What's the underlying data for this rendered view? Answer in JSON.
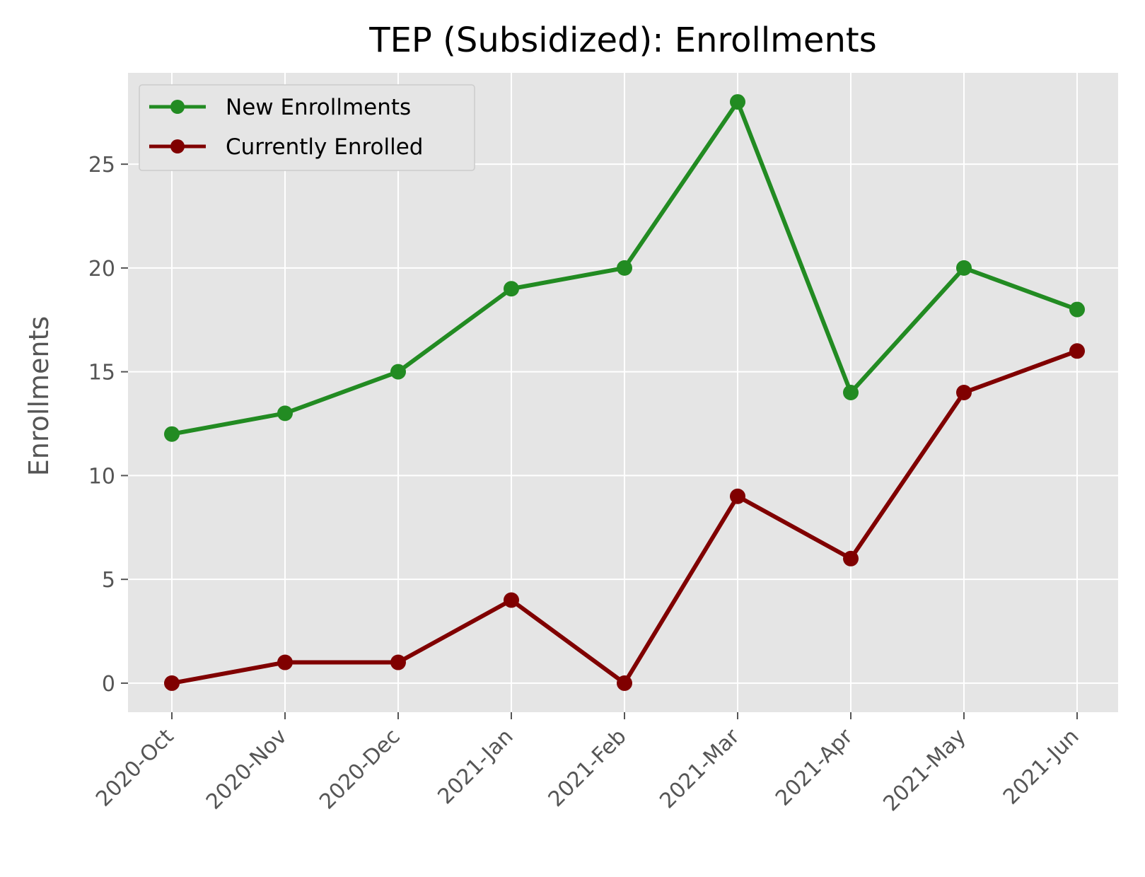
{
  "chart_data": {
    "type": "line",
    "title": "TEP (Subsidized): Enrollments",
    "xlabel": "",
    "ylabel": "Enrollments",
    "categories": [
      "2020-Oct",
      "2020-Nov",
      "2020-Dec",
      "2021-Jan",
      "2021-Feb",
      "2021-Mar",
      "2021-Apr",
      "2021-May",
      "2021-Jun"
    ],
    "y_ticks": [
      0,
      5,
      10,
      15,
      20,
      25
    ],
    "ylim": [
      -1.4,
      29.4
    ],
    "grid": true,
    "legend_position": "top-left",
    "series": [
      {
        "name": "New Enrollments",
        "color": "#228b22",
        "values": [
          12,
          13,
          15,
          19,
          20,
          28,
          14,
          20,
          18
        ]
      },
      {
        "name": "Currently Enrolled",
        "color": "#800000",
        "values": [
          0,
          1,
          1,
          4,
          0,
          9,
          6,
          14,
          16
        ]
      }
    ],
    "colors": {
      "plot_background": "#e5e5e5",
      "grid": "#ffffff",
      "tick": "#555555"
    }
  }
}
